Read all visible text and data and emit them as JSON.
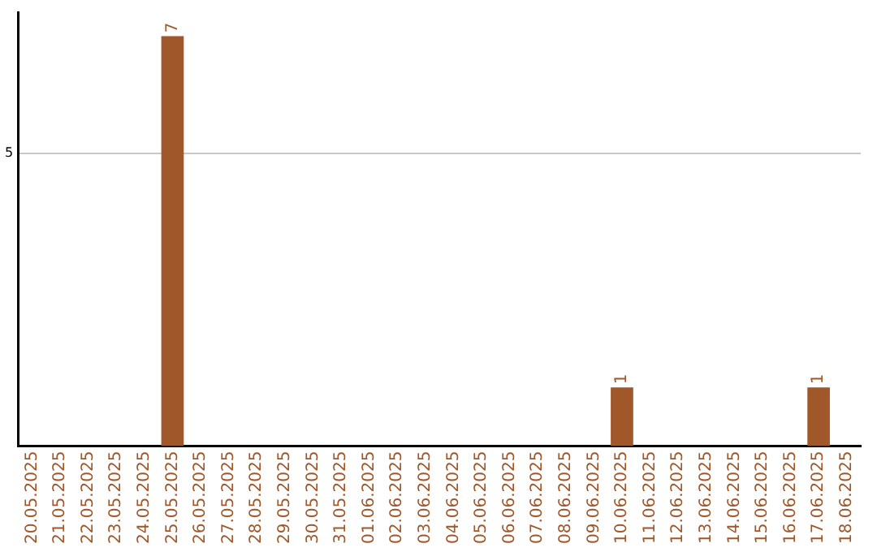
{
  "chart_data": {
    "type": "bar",
    "categories": [
      "20.05.2025",
      "21.05.2025",
      "22.05.2025",
      "23.05.2025",
      "24.05.2025",
      "25.05.2025",
      "26.05.2025",
      "27.05.2025",
      "28.05.2025",
      "29.05.2025",
      "30.05.2025",
      "31.05.2025",
      "01.06.2025",
      "02.06.2025",
      "03.06.2025",
      "04.06.2025",
      "05.06.2025",
      "06.06.2025",
      "07.06.2025",
      "08.06.2025",
      "09.06.2025",
      "10.06.2025",
      "11.06.2025",
      "12.06.2025",
      "13.06.2025",
      "14.06.2025",
      "15.06.2025",
      "16.06.2025",
      "17.06.2025",
      "18.06.2025"
    ],
    "values": [
      0,
      0,
      0,
      0,
      0,
      7,
      0,
      0,
      0,
      0,
      0,
      0,
      0,
      0,
      0,
      0,
      0,
      0,
      0,
      0,
      0,
      1,
      0,
      0,
      0,
      0,
      0,
      0,
      1,
      0
    ],
    "value_labels": [
      null,
      null,
      null,
      null,
      null,
      "7",
      null,
      null,
      null,
      null,
      null,
      null,
      null,
      null,
      null,
      null,
      null,
      null,
      null,
      null,
      null,
      "1",
      null,
      null,
      null,
      null,
      null,
      null,
      "1",
      null
    ],
    "color": "#a0572a",
    "ylim": [
      0,
      7.4
    ],
    "yticks": [
      5
    ],
    "grid": "y",
    "legend": false
  }
}
